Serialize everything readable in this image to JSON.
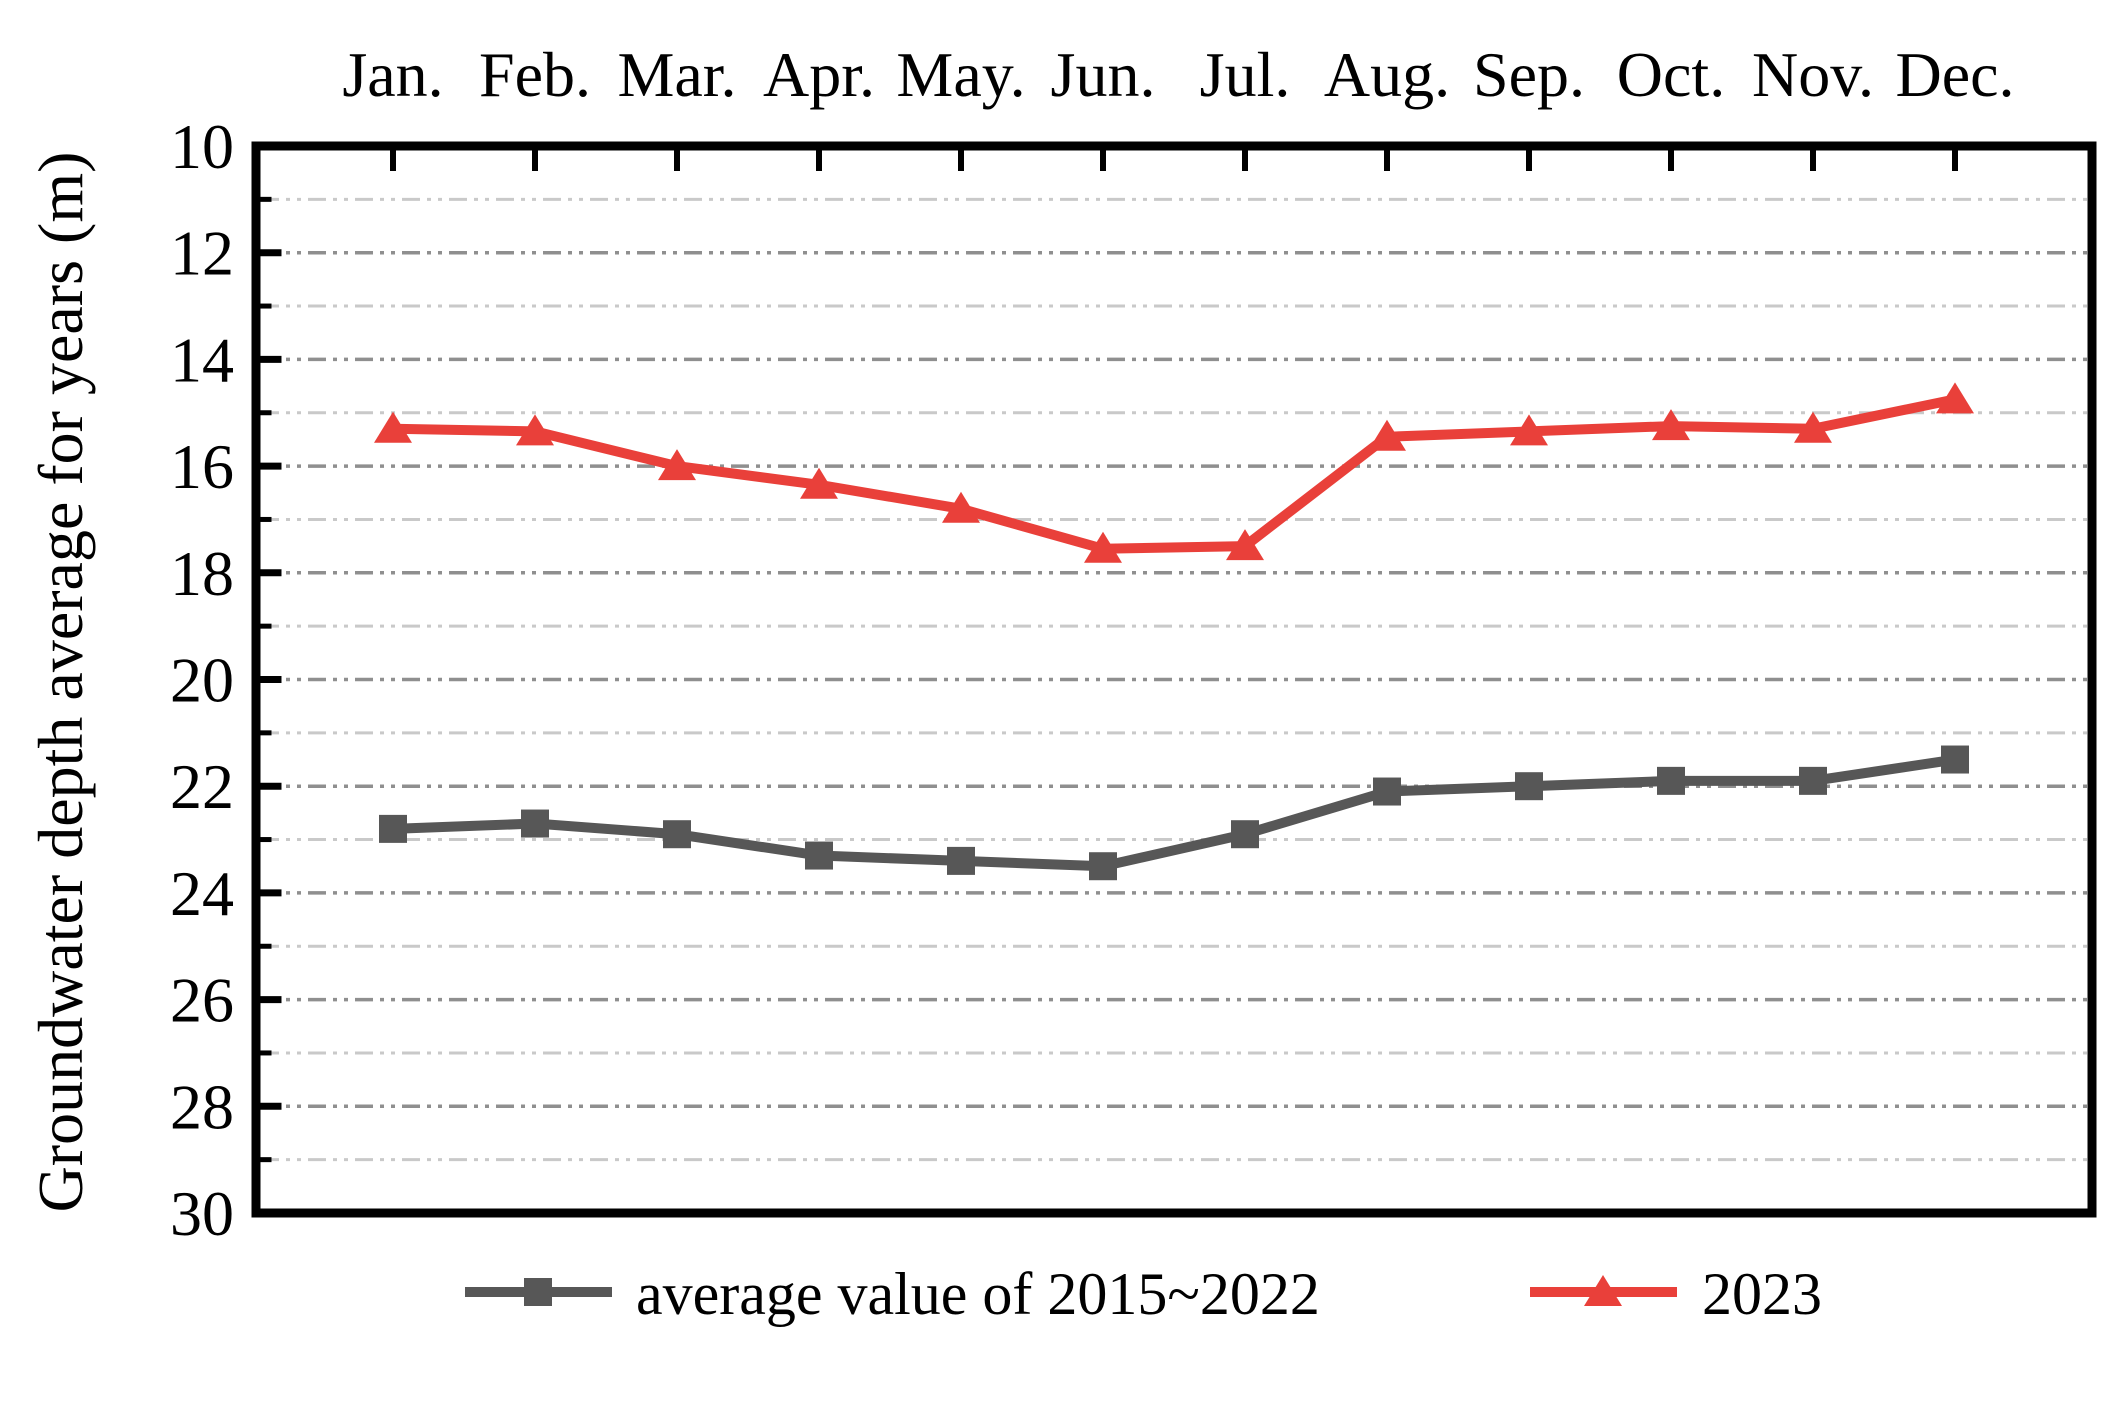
{
  "figure": {
    "background": "#ffffff"
  },
  "chart_data": {
    "type": "line",
    "title": "",
    "categories": [
      "Jan.",
      "Feb.",
      "Mar.",
      "Apr.",
      "May.",
      "Jun.",
      "Jul.",
      "Aug.",
      "Sep.",
      "Oct.",
      "Nov.",
      "Dec."
    ],
    "x_axis_position": "top",
    "series": [
      {
        "name": "average value of 2015~2022",
        "color": "#575757",
        "marker": "square",
        "values": [
          22.8,
          22.7,
          22.9,
          23.3,
          23.4,
          23.5,
          22.9,
          22.1,
          22.0,
          21.9,
          21.9,
          21.5
        ]
      },
      {
        "name": "2023",
        "color": "#e9403a",
        "marker": "triangle",
        "values": [
          15.3,
          15.35,
          16.0,
          16.35,
          16.8,
          17.55,
          17.5,
          15.45,
          15.35,
          15.25,
          15.3,
          14.75
        ]
      }
    ],
    "ylabel": "Groundwater depth average for years (m)",
    "ylim": [
      10,
      30
    ],
    "y_direction": "increases_downward",
    "y_major_ticks": [
      10,
      12,
      14,
      16,
      18,
      20,
      22,
      24,
      26,
      28,
      30
    ],
    "y_minor_step": 1,
    "grid": {
      "horizontal": true,
      "vertical": false,
      "style": "dash-dot-dot",
      "minor_color": "#c9c9c9",
      "major_color": "#8f8f8f"
    },
    "legend_position": "bottom-center"
  }
}
